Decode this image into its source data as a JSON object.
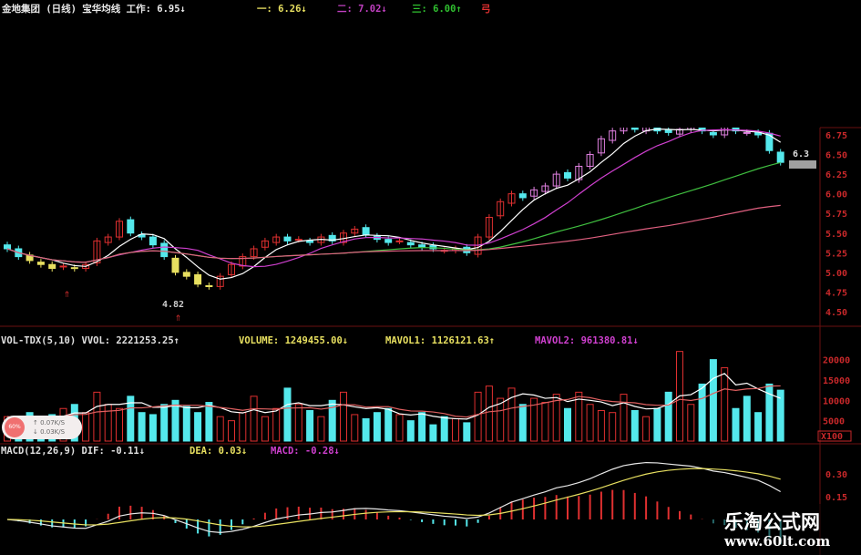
{
  "header": {
    "title": "金地集团 (日线) 宝华均线 工作: 6.95↓",
    "line1": "一: 6.26↓",
    "line2": "二: 7.02↓",
    "line3": "三: 6.00↑",
    "tail": "弓"
  },
  "volume_header": {
    "name": "VOL-TDX(5,10) VVOL: 2221253.25↑",
    "volume": "VOLUME: 1249455.00↓",
    "mavol1": "MAVOL1: 1126121.63↑",
    "mavol2": "MAVOL2: 961380.81↓"
  },
  "macd_header": {
    "name": "MACD(12,26,9) DIF: -0.11↓",
    "dea": "DEA: 0.03↓",
    "macd": "MACD: -0.28↓"
  },
  "speed_widget": {
    "percent": "60%",
    "up": "↑ 0.07K/S",
    "down": "↓ 0.03K/S"
  },
  "watermark": {
    "name": "乐淘公式网",
    "url": "www.60lt.com"
  },
  "colors": {
    "up": "#e03030",
    "down": "#54e8ec",
    "axis": "#c8282a",
    "ma5": "#ffffff",
    "ma10": "#d040d0",
    "ma30": "#40c040",
    "ma60": "#e06080"
  },
  "chart_data": [
    {
      "type": "candlestick",
      "panel": "price",
      "yticks": [
        "6.75",
        "6.50",
        "6.25",
        "6.00",
        "5.75",
        "5.50",
        "5.25",
        "5.00",
        "4.75",
        "4.50"
      ],
      "ylim": [
        4.45,
        6.8
      ],
      "close": [
        5.3,
        5.2,
        5.15,
        5.1,
        5.05,
        5.08,
        5.05,
        5.1,
        5.4,
        5.45,
        5.65,
        5.5,
        5.45,
        5.35,
        5.2,
        5.0,
        4.95,
        4.85,
        4.82,
        4.95,
        5.1,
        5.2,
        5.3,
        5.4,
        5.45,
        5.4,
        5.42,
        5.38,
        5.45,
        5.4,
        5.5,
        5.55,
        5.48,
        5.42,
        5.38,
        5.4,
        5.35,
        5.32,
        5.3,
        5.28,
        5.3,
        5.25,
        5.45,
        5.7,
        5.9,
        6.0,
        5.95,
        6.05,
        6.1,
        6.25,
        6.2,
        6.35,
        6.5,
        6.7,
        6.8,
        6.85,
        6.82,
        6.85,
        6.8,
        6.78,
        6.82,
        6.85,
        6.8,
        6.75,
        6.85,
        6.8,
        6.78,
        6.75,
        6.55,
        6.4
      ],
      "annotations": [
        {
          "text": "4.82"
        },
        {
          "text": "6.3"
        }
      ]
    },
    {
      "type": "bar",
      "panel": "volume",
      "yticks": [
        "20000",
        "15000",
        "10000",
        "5000"
      ],
      "unit": "X100",
      "ylim": [
        0,
        22000
      ],
      "values": [
        6000,
        5000,
        7000,
        4000,
        6500,
        8000,
        9000,
        7000,
        12000,
        9000,
        8000,
        11000,
        7000,
        6500,
        9000,
        10000,
        8500,
        7000,
        9500,
        6000,
        5000,
        7000,
        11000,
        6000,
        8000,
        13000,
        9000,
        7500,
        6000,
        10000,
        12000,
        6500,
        5500,
        7000,
        8000,
        6500,
        5000,
        7000,
        4000,
        6000,
        5500,
        4500,
        12000,
        13500,
        10500,
        13000,
        9000,
        10500,
        9500,
        11500,
        8000,
        12000,
        9000,
        7500,
        7000,
        11500,
        7500,
        6000,
        8000,
        12000,
        22000,
        9000,
        14000,
        20000,
        18000,
        8000,
        11000,
        7000,
        14000,
        12500
      ]
    },
    {
      "type": "line+bar",
      "panel": "macd",
      "yticks": [
        "0.30",
        "0.15"
      ],
      "series": [
        {
          "name": "DIF"
        },
        {
          "name": "DEA"
        },
        {
          "name": "MACD"
        }
      ]
    }
  ]
}
